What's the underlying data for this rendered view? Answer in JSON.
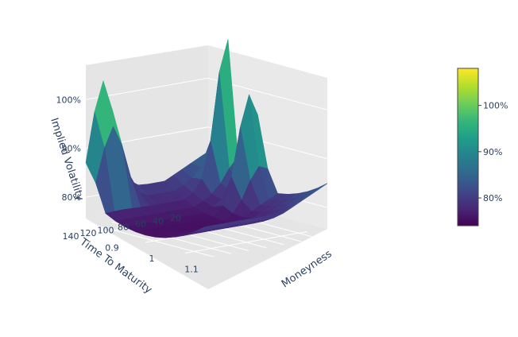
{
  "chart_data": {
    "type": "surface",
    "axes": {
      "x": {
        "title": "Moneyness",
        "ticks": [
          "0.9",
          "1",
          "1.1"
        ],
        "range": [
          0.85,
          1.15
        ]
      },
      "y": {
        "title": "Time To Maturity",
        "ticks": [
          "20",
          "40",
          "60",
          "80",
          "100",
          "120",
          "140"
        ],
        "range": [
          10,
          150
        ]
      },
      "z": {
        "title": "Implied Volatility",
        "ticks": [
          "80%",
          "90%",
          "100%"
        ],
        "range": [
          0.74,
          1.09
        ]
      }
    },
    "colorbar": {
      "ticks": [
        "80%",
        "90%",
        "100%"
      ],
      "range": [
        0.74,
        1.08
      ],
      "colorscale": "Viridis",
      "colors": [
        "#440154",
        "#482878",
        "#3e4989",
        "#31688e",
        "#26828e",
        "#1f9e89",
        "#35b779",
        "#6ece58",
        "#b5de2b",
        "#fde725"
      ]
    },
    "moneyness": [
      0.85,
      0.875,
      0.9,
      0.925,
      0.95,
      0.975,
      1.0,
      1.025,
      1.05,
      1.075,
      1.1,
      1.125,
      1.15
    ],
    "time_to_maturity": [
      10,
      20,
      30,
      40,
      50,
      60,
      70,
      80,
      90,
      100,
      110,
      120,
      130,
      140,
      150
    ],
    "peaks": [
      {
        "moneyness": 0.86,
        "time_to_maturity": 130,
        "iv": 1.07
      },
      {
        "moneyness": 0.98,
        "time_to_maturity": 20,
        "iv": 0.98
      },
      {
        "moneyness": 0.9,
        "time_to_maturity": 10,
        "iv": 1.05
      }
    ]
  }
}
